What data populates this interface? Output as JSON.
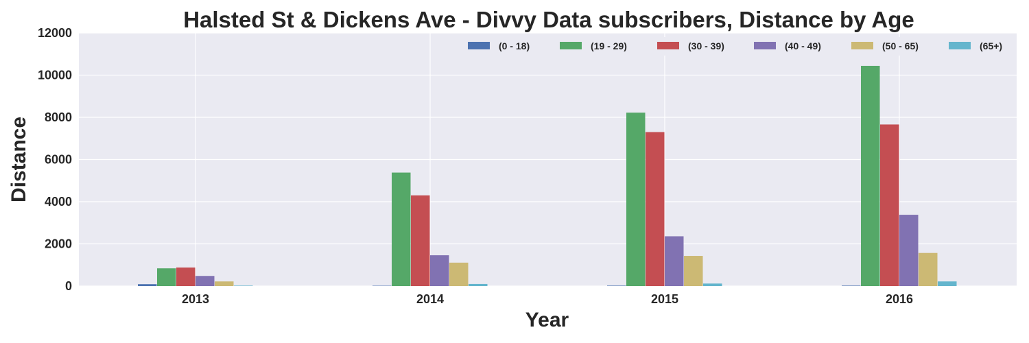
{
  "chart_data": {
    "type": "bar",
    "title": "Halsted St & Dickens Ave - Divvy Data subscribers, Distance by Age",
    "xlabel": "Year",
    "ylabel": "Distance",
    "categories": [
      "2013",
      "2014",
      "2015",
      "2016"
    ],
    "ylim": [
      0,
      12000
    ],
    "yticks": [
      0,
      2000,
      4000,
      6000,
      8000,
      10000,
      12000
    ],
    "grid": true,
    "legend_position": "top-right",
    "series": [
      {
        "name": "(0 - 18)",
        "color": "#4c72b0",
        "values": [
          90,
          15,
          20,
          20
        ]
      },
      {
        "name": "(19 - 29)",
        "color": "#55a868",
        "values": [
          840,
          5380,
          8220,
          10440
        ]
      },
      {
        "name": "(30 - 39)",
        "color": "#c44e52",
        "values": [
          880,
          4300,
          7300,
          7660
        ]
      },
      {
        "name": "(40 - 49)",
        "color": "#8172b2",
        "values": [
          480,
          1460,
          2360,
          3380
        ]
      },
      {
        "name": "(50 - 65)",
        "color": "#ccb974",
        "values": [
          220,
          1110,
          1430,
          1570
        ]
      },
      {
        "name": "(65+)",
        "color": "#64b5cd",
        "values": [
          20,
          100,
          120,
          220
        ]
      }
    ]
  }
}
